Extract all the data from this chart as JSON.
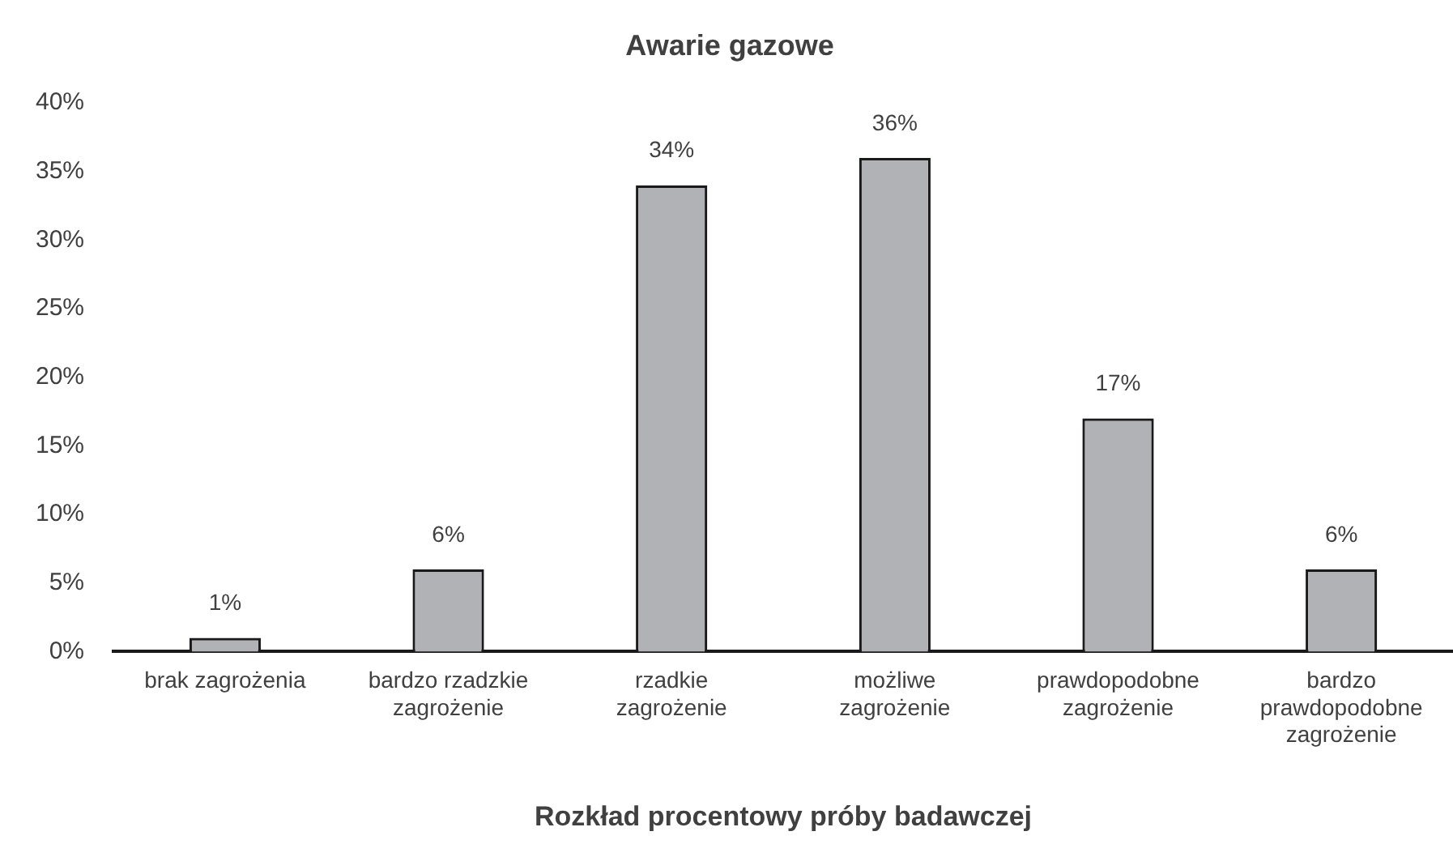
{
  "chart_data": {
    "type": "bar",
    "title": "Awarie gazowe",
    "xlabel": "Rozkład procentowy próby badawczej",
    "categories": [
      "brak zagrożenia",
      "bardzo rzadzkie zagrożenie",
      "rzadkie zagrożenie",
      "możliwe zagrożenie",
      "prawdopodobne zagrożenie",
      "bardzo prawdopodobne zagrożenie"
    ],
    "values": [
      1,
      6,
      34,
      36,
      17,
      6
    ],
    "value_labels": [
      "1%",
      "6%",
      "34%",
      "36%",
      "17%",
      "6%"
    ],
    "color": "#b1b2b6",
    "ylim": [
      0,
      40
    ],
    "yticks": [
      {
        "value": 0,
        "label": "0%"
      },
      {
        "value": 5,
        "label": "5%"
      },
      {
        "value": 10,
        "label": "10%"
      },
      {
        "value": 15,
        "label": "15%"
      },
      {
        "value": 20,
        "label": "20%"
      },
      {
        "value": 25,
        "label": "25%"
      },
      {
        "value": 30,
        "label": "30%"
      },
      {
        "value": 35,
        "label": "35%"
      },
      {
        "value": 40,
        "label": "40%"
      }
    ],
    "grid": false,
    "legend": false
  }
}
